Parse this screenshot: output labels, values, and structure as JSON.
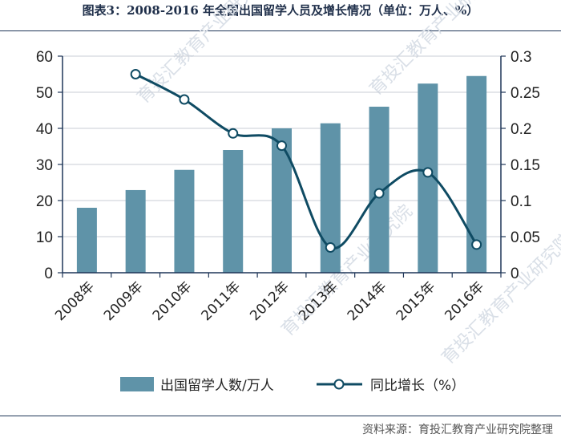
{
  "title": "图表3：2008-2016 年全国出国留学人员及增长情况（单位：万人、%）",
  "source": "资料来源：育投汇教育产业研究院整理",
  "watermark": "育投汇教育产业研究院",
  "colors": {
    "bar": "#5f93a8",
    "line": "#0f4b63",
    "marker_fill": "#ffffff",
    "frame": "#1f3658"
  },
  "chart_data": {
    "type": "bar",
    "categories": [
      "2008年",
      "2009年",
      "2010年",
      "2011年",
      "2012年",
      "2013年",
      "2014年",
      "2015年",
      "2016年"
    ],
    "series": [
      {
        "name": "出国留学人数/万人",
        "type": "bar",
        "axis": "left",
        "values": [
          18.0,
          22.9,
          28.5,
          34.0,
          40.0,
          41.4,
          46.0,
          52.4,
          54.5
        ]
      },
      {
        "name": "同比增长（%）",
        "type": "line",
        "axis": "right",
        "smooth": true,
        "values": [
          null,
          0.275,
          0.24,
          0.193,
          0.176,
          0.035,
          0.11,
          0.139,
          0.039
        ]
      }
    ],
    "y_left": {
      "range": [
        0,
        60
      ],
      "ticks": [
        "0",
        "10",
        "20",
        "30",
        "40",
        "50",
        "60"
      ]
    },
    "y_right": {
      "range": [
        0,
        0.3
      ],
      "ticks": [
        "0",
        "0.05",
        "0.1",
        "0.15",
        "0.2",
        "0.25",
        "0.3"
      ]
    },
    "grid": "horizontal",
    "legend": "bottom"
  }
}
